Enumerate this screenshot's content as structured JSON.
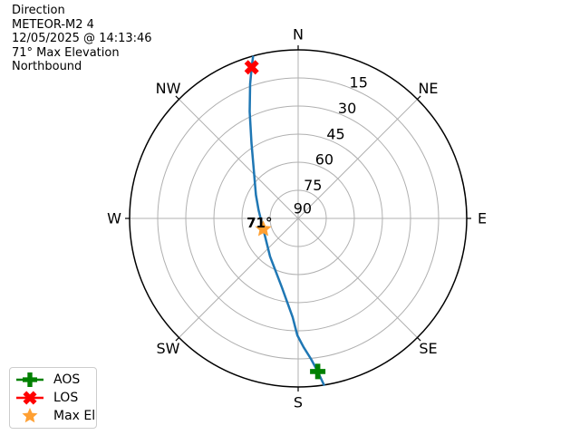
{
  "window": {
    "background": "#ffffff"
  },
  "info": {
    "lines": [
      "Direction",
      "METEOR-M2 4",
      "12/05/2025 @ 14:13:46",
      "71° Max Elevation",
      "Northbound"
    ]
  },
  "chart_data": {
    "type": "polar",
    "subtype": "azimuth-elevation-satellite-pass",
    "title": "Direction",
    "compass_labels": [
      "N",
      "NE",
      "E",
      "SE",
      "S",
      "SW",
      "W",
      "NW"
    ],
    "elevation_rings": [
      15,
      30,
      45,
      60,
      75,
      90
    ],
    "elevation_range": [
      0,
      90
    ],
    "ring_label_azimuth_deg": 24,
    "grid": true,
    "grid_color": "#b0b0b0",
    "outline_color": "#000000",
    "track": {
      "name": "pass-track",
      "color": "#1f77b4",
      "points_az_el": [
        [
          171.2,
          0.1
        ],
        [
          172.7,
          7.6
        ],
        [
          174.8,
          14.7
        ],
        [
          177.6,
          21.2
        ],
        [
          180.4,
          27.6
        ],
        [
          183.2,
          37.2
        ],
        [
          193.3,
          52.2
        ],
        [
          216.4,
          64.7
        ],
        [
          253.0,
          70.5
        ],
        [
          282.0,
          68.4
        ],
        [
          299.1,
          64.2
        ],
        [
          317.8,
          54.7
        ],
        [
          328.2,
          42.7
        ],
        [
          335.6,
          27.3
        ],
        [
          340.3,
          13.9
        ],
        [
          342.9,
          5.6
        ],
        [
          344.4,
          0.4
        ]
      ]
    },
    "markers": [
      {
        "name": "AOS",
        "shape": "plus",
        "color": "#008000",
        "az": 172.7,
        "el": 7.6
      },
      {
        "name": "LOS",
        "shape": "x",
        "color": "#ff0000",
        "az": 342.9,
        "el": 5.6
      },
      {
        "name": "Max El",
        "shape": "star",
        "color": "#ffa033",
        "az": 253.0,
        "el": 70.5,
        "label": "71°"
      }
    ]
  },
  "legend": {
    "entries": [
      {
        "label": "AOS",
        "marker": "plus",
        "color": "#008000",
        "line": true
      },
      {
        "label": "LOS",
        "marker": "x",
        "color": "#ff0000",
        "line": true
      },
      {
        "label": "Max El",
        "marker": "star",
        "color": "#ffa033",
        "line": false
      }
    ]
  }
}
